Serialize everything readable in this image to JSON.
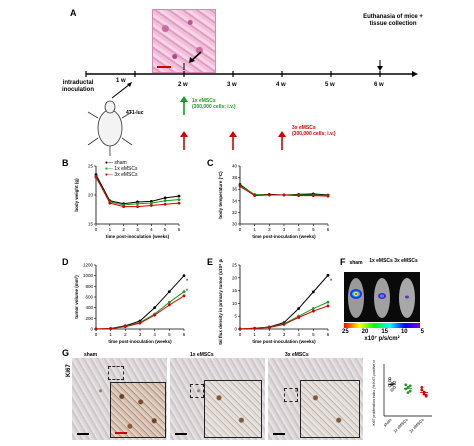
{
  "panels": {
    "a": "A",
    "b": "B",
    "c": "C",
    "d": "D",
    "e": "E",
    "f": "F",
    "g": "G"
  },
  "timeline": {
    "weeks": [
      "1 w",
      "2 w",
      "3 w",
      "4 w",
      "5 w",
      "6 w"
    ],
    "inoculation_label": "intraductal inoculation",
    "cell_label": "4T1-luc",
    "euthanasia_label": "Euthanasia of mice + tissue collection",
    "treatment_1x_line1": "1x eMSCs",
    "treatment_1x_line2": "(300,000 cells; i.v.)",
    "treatment_3x_line1": "3x eMSCs",
    "treatment_3x_line2": "(300,000 cells; i.v.)",
    "colors": {
      "green": "#1a9a1a",
      "red": "#d40000"
    }
  },
  "legend": {
    "items": [
      {
        "label": "sham",
        "color": "#000000"
      },
      {
        "label": "1x eMSCs",
        "color": "#1a9a1a"
      },
      {
        "label": "3x eMSCs",
        "color": "#d40000"
      }
    ]
  },
  "chart_data": [
    {
      "type": "line",
      "panel": "B",
      "ylabel": "body weight (g)",
      "xlabel": "time post-inoculation (weeks)",
      "x": [
        0,
        1,
        2,
        3,
        4,
        5,
        6
      ],
      "xticks": [
        "0",
        "1",
        "2",
        "3",
        "4",
        "5",
        "6"
      ],
      "yticks": [
        "15",
        "20",
        "25"
      ],
      "ylim": [
        15,
        25
      ],
      "series": [
        {
          "name": "sham",
          "values": [
            23.5,
            19.0,
            18.5,
            18.8,
            18.9,
            19.5,
            19.8
          ]
        },
        {
          "name": "1x eMSCs",
          "values": [
            23.0,
            18.8,
            18.3,
            18.5,
            18.6,
            19.0,
            19.2
          ]
        },
        {
          "name": "3x eMSCs",
          "values": [
            23.2,
            18.6,
            18.0,
            18.0,
            18.2,
            18.4,
            18.6
          ]
        }
      ]
    },
    {
      "type": "line",
      "panel": "C",
      "ylabel": "body temperature (°C)",
      "xlabel": "time post-inoculation (weeks)",
      "x": [
        0,
        1,
        2,
        3,
        4,
        5,
        6
      ],
      "xticks": [
        "0",
        "1",
        "2",
        "3",
        "4",
        "5",
        "6"
      ],
      "yticks": [
        "30",
        "32",
        "34",
        "36",
        "38",
        "40"
      ],
      "ylim": [
        30,
        40
      ],
      "series": [
        {
          "name": "sham",
          "values": [
            36.8,
            35.0,
            35.1,
            35.0,
            35.1,
            35.2,
            35.0
          ]
        },
        {
          "name": "1x eMSCs",
          "values": [
            36.6,
            35.1,
            35.0,
            35.0,
            35.0,
            35.0,
            34.9
          ]
        },
        {
          "name": "3x eMSCs",
          "values": [
            36.5,
            34.9,
            35.0,
            35.0,
            34.9,
            34.9,
            34.8
          ]
        }
      ]
    },
    {
      "type": "line",
      "panel": "D",
      "ylabel": "tumor volume (mm³)",
      "xlabel": "time post-inoculation (weeks)",
      "x": [
        0,
        1,
        2,
        3,
        4,
        5,
        6
      ],
      "xticks": [
        "0",
        "1",
        "2",
        "3",
        "4",
        "5",
        "6"
      ],
      "yticks": [
        "0",
        "200",
        "400",
        "600",
        "800",
        "1000",
        "1200"
      ],
      "ylim": [
        0,
        1200
      ],
      "annotations": [
        "*",
        "*"
      ],
      "series": [
        {
          "name": "sham",
          "values": [
            0,
            10,
            60,
            150,
            400,
            700,
            1000
          ]
        },
        {
          "name": "1x eMSCs",
          "values": [
            0,
            8,
            50,
            120,
            280,
            500,
            700
          ]
        },
        {
          "name": "3x eMSCs",
          "values": [
            0,
            8,
            45,
            110,
            260,
            450,
            620
          ]
        }
      ]
    },
    {
      "type": "line",
      "panel": "E",
      "ylabel": "total flux density in primary tumor (x10⁸ p/s/cm²)",
      "xlabel": "time post-inoculation (weeks)",
      "x": [
        0,
        1,
        2,
        3,
        4,
        5,
        6
      ],
      "xticks": [
        "0",
        "1",
        "2",
        "3",
        "4",
        "5",
        "6"
      ],
      "yticks": [
        "0",
        "5",
        "10",
        "15",
        "20",
        "25"
      ],
      "ylim": [
        0,
        25
      ],
      "annotations": [
        "*"
      ],
      "series": [
        {
          "name": "sham",
          "values": [
            0,
            0.3,
            0.8,
            2.5,
            8.0,
            14.5,
            21.0
          ]
        },
        {
          "name": "1x eMSCs",
          "values": [
            0,
            0.3,
            0.7,
            2.0,
            5.0,
            8.0,
            10.5
          ]
        },
        {
          "name": "3x eMSCs",
          "values": [
            0,
            0.3,
            0.6,
            1.8,
            4.5,
            7.0,
            9.0
          ]
        }
      ]
    },
    {
      "type": "scatter",
      "panel": "G-inset",
      "ylabel": "Ki67 proliferation index (% Ki67-positive cells)",
      "categories": [
        "sham",
        "1x eMSCs",
        "3x eMSCs"
      ],
      "series": [
        {
          "name": "sham",
          "values": [
            68,
            62,
            55,
            72,
            50,
            65,
            58,
            60
          ]
        },
        {
          "name": "1x eMSCs",
          "values": [
            60,
            55,
            48,
            52,
            45,
            58
          ]
        },
        {
          "name": "3x eMSCs",
          "values": [
            50,
            42,
            38,
            55,
            46,
            40
          ]
        }
      ]
    }
  ],
  "imaging": {
    "labels": [
      "sham",
      "1x eMSCs",
      "3x eMSCs"
    ],
    "scale_ticks": [
      "25",
      "20",
      "15",
      "10",
      "5"
    ],
    "scale_unit": "x10⁷ p/s/cm²"
  },
  "ihc": {
    "row_label": "Ki67",
    "groups": [
      "sham",
      "1x eMSCs",
      "3x eMSCs"
    ]
  }
}
